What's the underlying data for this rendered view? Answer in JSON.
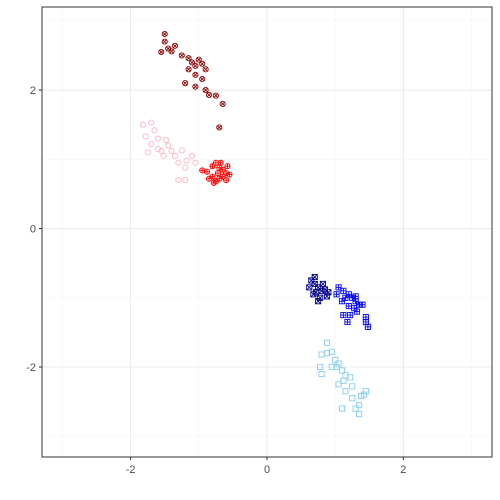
{
  "chart_data": {
    "type": "scatter",
    "title": "",
    "xlabel": "",
    "ylabel": "",
    "xlim": [
      -3.3,
      3.3
    ],
    "ylim": [
      -3.3,
      3.2
    ],
    "x_ticks": [
      -2,
      0,
      2
    ],
    "x_tick_labels": [
      "-2",
      "0",
      "2"
    ],
    "y_ticks": [
      -2,
      0,
      2
    ],
    "y_tick_labels": [
      "-2",
      "0",
      "2"
    ],
    "grid": true,
    "legend": "none",
    "colors": {
      "panel_border": "#333333",
      "grid_major": "#ebebeb",
      "grid_minor": "#f5f5f5",
      "tick": "#333333"
    },
    "series": [
      {
        "marker": "circle-x",
        "color": "#8b0000",
        "points": [
          [
            -1.5,
            2.81
          ],
          [
            -1.5,
            2.7
          ],
          [
            -1.35,
            2.64
          ],
          [
            -1.45,
            2.6
          ],
          [
            -1.55,
            2.55
          ],
          [
            -1.4,
            2.56
          ],
          [
            -1.25,
            2.5
          ],
          [
            -1.15,
            2.46
          ],
          [
            -1.1,
            2.4
          ],
          [
            -1.05,
            2.35
          ],
          [
            -1.0,
            2.44
          ],
          [
            -0.95,
            2.38
          ],
          [
            -0.9,
            2.3
          ],
          [
            -1.15,
            2.3
          ],
          [
            -1.05,
            2.22
          ],
          [
            -0.95,
            2.16
          ],
          [
            -1.05,
            2.05
          ],
          [
            -1.2,
            2.1
          ],
          [
            -0.9,
            2.0
          ],
          [
            -0.85,
            1.93
          ],
          [
            -0.75,
            1.92
          ],
          [
            -0.65,
            1.8
          ],
          [
            -0.7,
            1.46
          ]
        ]
      },
      {
        "marker": "circle",
        "color": "#ffb6c1",
        "points": [
          [
            -1.82,
            1.5
          ],
          [
            -1.7,
            1.53
          ],
          [
            -1.65,
            1.42
          ],
          [
            -1.78,
            1.33
          ],
          [
            -1.6,
            1.3
          ],
          [
            -1.7,
            1.22
          ],
          [
            -1.55,
            1.12
          ],
          [
            -1.45,
            1.2
          ],
          [
            -1.52,
            1.05
          ],
          [
            -1.4,
            1.12
          ],
          [
            -1.35,
            1.05
          ],
          [
            -1.25,
            1.13
          ],
          [
            -1.3,
            0.95
          ],
          [
            -1.18,
            0.98
          ],
          [
            -1.1,
            1.05
          ],
          [
            -1.2,
            0.88
          ],
          [
            -1.05,
            0.95
          ],
          [
            -1.3,
            0.7
          ],
          [
            -1.2,
            0.7
          ],
          [
            -1.6,
            1.15
          ],
          [
            -1.75,
            1.1
          ],
          [
            -1.48,
            1.28
          ]
        ]
      },
      {
        "marker": "circle-plus",
        "color": "#ff0000",
        "points": [
          [
            -0.95,
            0.84
          ],
          [
            -0.88,
            0.82
          ],
          [
            -0.8,
            0.9
          ],
          [
            -0.75,
            0.95
          ],
          [
            -0.7,
            0.88
          ],
          [
            -0.72,
            0.8
          ],
          [
            -0.65,
            0.85
          ],
          [
            -0.6,
            0.8
          ],
          [
            -0.55,
            0.78
          ],
          [
            -0.6,
            0.7
          ],
          [
            -0.7,
            0.72
          ],
          [
            -0.8,
            0.75
          ],
          [
            -0.75,
            0.68
          ],
          [
            -0.85,
            0.72
          ],
          [
            -0.65,
            0.75
          ],
          [
            -0.58,
            0.9
          ],
          [
            -0.68,
            0.95
          ],
          [
            -0.78,
            0.66
          ]
        ]
      },
      {
        "marker": "square-x",
        "color": "#00008b",
        "points": [
          [
            0.65,
            -0.75
          ],
          [
            0.7,
            -0.8
          ],
          [
            0.62,
            -0.85
          ],
          [
            0.75,
            -0.85
          ],
          [
            0.8,
            -0.9
          ],
          [
            0.72,
            -0.92
          ],
          [
            0.85,
            -0.88
          ],
          [
            0.78,
            -1.0
          ],
          [
            0.68,
            -0.95
          ],
          [
            0.9,
            -0.92
          ],
          [
            0.7,
            -0.7
          ],
          [
            0.82,
            -0.8
          ],
          [
            0.88,
            -0.98
          ],
          [
            0.75,
            -1.05
          ]
        ]
      },
      {
        "marker": "square-plus",
        "color": "#0000ff",
        "points": [
          [
            1.05,
            -0.85
          ],
          [
            1.12,
            -0.9
          ],
          [
            1.2,
            -0.95
          ],
          [
            1.25,
            -1.0
          ],
          [
            1.3,
            -1.05
          ],
          [
            1.35,
            -1.1
          ],
          [
            1.28,
            -1.15
          ],
          [
            1.2,
            -1.12
          ],
          [
            1.15,
            -1.0
          ],
          [
            1.1,
            -1.05
          ],
          [
            1.32,
            -1.2
          ],
          [
            1.22,
            -1.25
          ],
          [
            1.45,
            -1.35
          ],
          [
            1.48,
            -1.42
          ],
          [
            1.45,
            -1.28
          ],
          [
            1.12,
            -1.25
          ],
          [
            1.18,
            -1.35
          ],
          [
            1.4,
            -1.1
          ],
          [
            1.02,
            -0.95
          ],
          [
            1.3,
            -0.98
          ]
        ]
      },
      {
        "marker": "square",
        "color": "#87ceeb",
        "points": [
          [
            0.88,
            -1.65
          ],
          [
            0.95,
            -1.78
          ],
          [
            0.8,
            -1.82
          ],
          [
            0.88,
            -1.8
          ],
          [
            1.0,
            -1.9
          ],
          [
            1.05,
            -1.95
          ],
          [
            1.02,
            -2.0
          ],
          [
            0.95,
            -2.0
          ],
          [
            0.78,
            -2.0
          ],
          [
            0.8,
            -2.1
          ],
          [
            1.1,
            -2.05
          ],
          [
            1.15,
            -2.12
          ],
          [
            1.22,
            -2.15
          ],
          [
            1.12,
            -2.2
          ],
          [
            1.05,
            -2.25
          ],
          [
            1.25,
            -2.28
          ],
          [
            1.15,
            -2.35
          ],
          [
            1.45,
            -2.35
          ],
          [
            1.38,
            -2.42
          ],
          [
            1.42,
            -2.4
          ],
          [
            1.25,
            -2.45
          ],
          [
            1.35,
            -2.55
          ],
          [
            1.3,
            -2.6
          ],
          [
            1.1,
            -2.6
          ],
          [
            1.35,
            -2.68
          ]
        ]
      }
    ]
  }
}
